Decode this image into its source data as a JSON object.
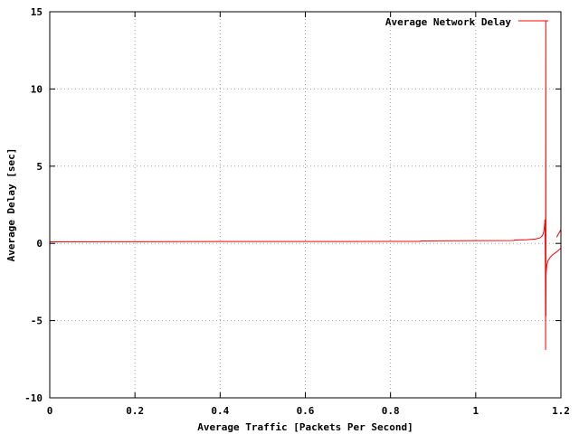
{
  "chart_data": {
    "type": "line",
    "title": "",
    "xlabel": "Average Traffic [Packets Per Second]",
    "ylabel": "Average Delay [sec]",
    "xlim": [
      0,
      1.2
    ],
    "ylim": [
      -10,
      15
    ],
    "x_ticks": [
      {
        "value": 0,
        "label": "0"
      },
      {
        "value": 0.2,
        "label": "0.2"
      },
      {
        "value": 0.4,
        "label": "0.4"
      },
      {
        "value": 0.6,
        "label": "0.6"
      },
      {
        "value": 0.8,
        "label": "0.8"
      },
      {
        "value": 1.0,
        "label": "1"
      },
      {
        "value": 1.2,
        "label": "1.2"
      }
    ],
    "y_ticks": [
      {
        "value": -10,
        "label": "-10"
      },
      {
        "value": -5,
        "label": "-5"
      },
      {
        "value": 0,
        "label": "0"
      },
      {
        "value": 5,
        "label": "5"
      },
      {
        "value": 10,
        "label": "10"
      },
      {
        "value": 15,
        "label": "15"
      }
    ],
    "grid": true,
    "legend_position": "top-right",
    "series": [
      {
        "name": "Average Network Delay",
        "color": "#ff0000",
        "points": [
          [
            0.0,
            0.1
          ],
          [
            0.2,
            0.11
          ],
          [
            0.4,
            0.12
          ],
          [
            0.6,
            0.12
          ],
          [
            0.8,
            0.13
          ],
          [
            0.87,
            0.13
          ],
          [
            0.871,
            0.16
          ],
          [
            0.95,
            0.17
          ],
          [
            1.0,
            0.18
          ],
          [
            1.09,
            0.19
          ],
          [
            1.091,
            0.22
          ],
          [
            1.12,
            0.24
          ],
          [
            1.14,
            0.28
          ],
          [
            1.15,
            0.35
          ],
          [
            1.155,
            0.45
          ],
          [
            1.158,
            0.6
          ],
          [
            1.16,
            0.8
          ],
          [
            1.161,
            1.0
          ],
          [
            1.162,
            1.3
          ],
          [
            1.1625,
            1.55
          ],
          [
            1.1627,
            1.3
          ],
          [
            1.163,
            0.3
          ],
          [
            1.1632,
            -0.3
          ],
          [
            1.1635,
            -1.5
          ],
          [
            1.1638,
            -3.5
          ],
          [
            1.164,
            -6.9
          ],
          [
            1.1642,
            -3.0
          ],
          [
            1.1645,
            14.4
          ],
          [
            1.1648,
            -4.7
          ],
          [
            1.165,
            -2.0
          ],
          [
            1.167,
            -1.4
          ],
          [
            1.17,
            -1.1
          ],
          [
            1.175,
            -0.9
          ],
          [
            1.18,
            -0.75
          ],
          [
            1.19,
            -0.55
          ],
          [
            1.2,
            -0.3
          ]
        ],
        "branch": [
          [
            1.19,
            0.4
          ],
          [
            1.2,
            0.9
          ]
        ]
      }
    ]
  }
}
